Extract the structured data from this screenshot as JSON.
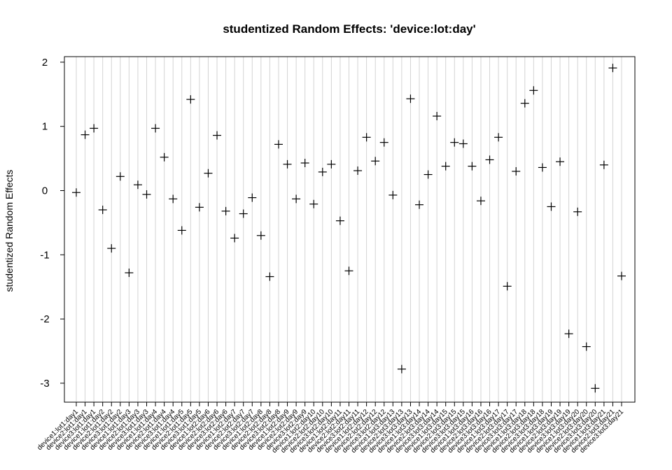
{
  "chart_data": {
    "type": "scatter",
    "title": "studentized  Random Effects: 'device:lot:day'",
    "xlabel": "",
    "ylabel": "studentized Random Effects",
    "ylim": [
      -3.3,
      2.2
    ],
    "yticks": [
      -3,
      -2,
      -1,
      0,
      1,
      2
    ],
    "grid": "vertical",
    "marker": "plus",
    "categories": [
      "device1:lot1:day1",
      "device2:lot1:day1",
      "device3:lot1:day1",
      "device1:lot1:day2",
      "device2:lot1:day2",
      "device3:lot1:day2",
      "device1:lot1:day3",
      "device2:lot1:day3",
      "device3:lot1:day3",
      "device1:lot1:day4",
      "device2:lot1:day4",
      "device3:lot1:day4",
      "device1:lot1:day5",
      "device2:lot1:day5",
      "device3:lot1:day5",
      "device1:lot2:day6",
      "device2:lot2:day6",
      "device3:lot2:day6",
      "device1:lot2:day7",
      "device2:lot2:day7",
      "device3:lot2:day7",
      "device1:lot2:day8",
      "device2:lot2:day8",
      "device3:lot2:day8",
      "device1:lot2:day9",
      "device2:lot2:day9",
      "device3:lot2:day9",
      "device1:lot2:day10",
      "device2:lot2:day10",
      "device3:lot2:day10",
      "device1:lot2:day11",
      "device2:lot2:day11",
      "device3:lot2:day11",
      "device1:lot2:day12",
      "device2:lot2:day12",
      "device3:lot2:day12",
      "device1:lot3:day13",
      "device2:lot3:day13",
      "device3:lot3:day13",
      "device1:lot3:day14",
      "device2:lot3:day14",
      "device3:lot3:day14",
      "device1:lot3:day15",
      "device2:lot3:day15",
      "device3:lot3:day15",
      "device1:lot3:day16",
      "device2:lot3:day16",
      "device3:lot3:day16",
      "device1:lot3:day17",
      "device2:lot3:day17",
      "device3:lot3:day17",
      "device1:lot3:day18",
      "device2:lot3:day18",
      "device3:lot3:day18",
      "device1:lot3:day19",
      "device2:lot3:day19",
      "device3:lot3:day19",
      "device1:lot3:day20",
      "device2:lot3:day20",
      "device3:lot3:day20",
      "device1:lot3:day21",
      "device2:lot3:day21",
      "device3:lot3:day21"
    ],
    "values": [
      -0.03,
      0.87,
      0.97,
      -0.3,
      -0.9,
      0.22,
      -1.28,
      0.09,
      -0.06,
      0.97,
      0.52,
      -0.13,
      -0.62,
      1.42,
      -0.26,
      0.27,
      0.86,
      -0.32,
      -0.74,
      -0.36,
      -0.11,
      -0.7,
      -1.34,
      0.72,
      0.41,
      -0.13,
      0.43,
      -0.21,
      0.29,
      0.41,
      -0.47,
      -1.25,
      0.31,
      0.83,
      0.46,
      0.75,
      -0.07,
      -2.78,
      1.43,
      -0.22,
      0.25,
      1.16,
      0.38,
      0.75,
      0.73,
      0.38,
      -0.16,
      0.48,
      0.83,
      -1.49,
      0.3,
      1.36,
      1.56,
      0.36,
      -0.25,
      0.45,
      -2.23,
      -0.33,
      -2.43,
      -3.08,
      0.4,
      1.91,
      -1.33
    ]
  }
}
